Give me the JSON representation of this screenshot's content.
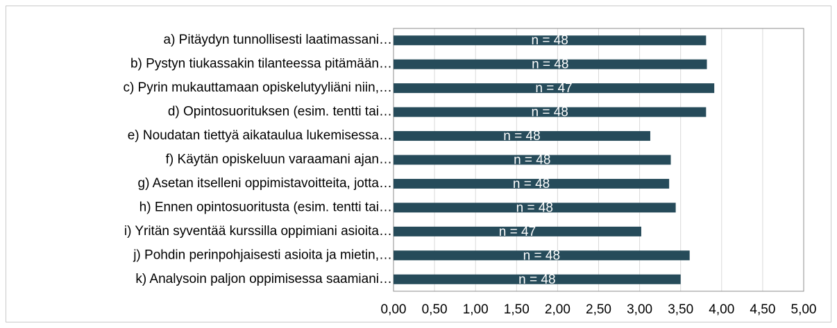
{
  "chart_data": {
    "type": "bar",
    "orientation": "horizontal",
    "categories": [
      "a) Pitäydyn tunnollisesti laatimassani…",
      "b) Pystyn tiukassakin tilanteessa pitämään…",
      "c) Pyrin mukauttamaan opiskelutyyliäni niin,…",
      "d) Opintosuorituksen (esim. tentti tai…",
      "e) Noudatan tiettyä aikataulua lukemisessa…",
      "f) Käytän opiskeluun varaamani ajan…",
      "g) Asetan itselleni oppimistavoitteita, jotta…",
      "h) Ennen opintosuoritusta (esim. tentti tai…",
      "i) Yritän syventää kurssilla oppimiani asioita…",
      "j) Pohdin perinpohjaisesti asioita ja mietin,…",
      "k) Analysoin paljon oppimisessa saamiani…"
    ],
    "values": [
      3.81,
      3.82,
      3.91,
      3.81,
      3.13,
      3.38,
      3.36,
      3.44,
      3.02,
      3.61,
      3.5
    ],
    "bar_labels": [
      "n = 48",
      "n = 48",
      "n = 47",
      "n = 48",
      "n = 48",
      "n = 48",
      "n = 48",
      "n = 48",
      "n = 47",
      "n = 48",
      "n = 48"
    ],
    "color": "#264b5a",
    "xlim": [
      0,
      5
    ],
    "xticks": [
      {
        "value": 0,
        "label": "0,00"
      },
      {
        "value": 0.5,
        "label": "0,50"
      },
      {
        "value": 1,
        "label": "1,00"
      },
      {
        "value": 1.5,
        "label": "1,50"
      },
      {
        "value": 2,
        "label": "2,00"
      },
      {
        "value": 2.5,
        "label": "2,50"
      },
      {
        "value": 3,
        "label": "3,00"
      },
      {
        "value": 3.5,
        "label": "3,50"
      },
      {
        "value": 4,
        "label": "4,00"
      },
      {
        "value": 4.5,
        "label": "4,50"
      },
      {
        "value": 5,
        "label": "5,00"
      }
    ],
    "grid": true
  }
}
